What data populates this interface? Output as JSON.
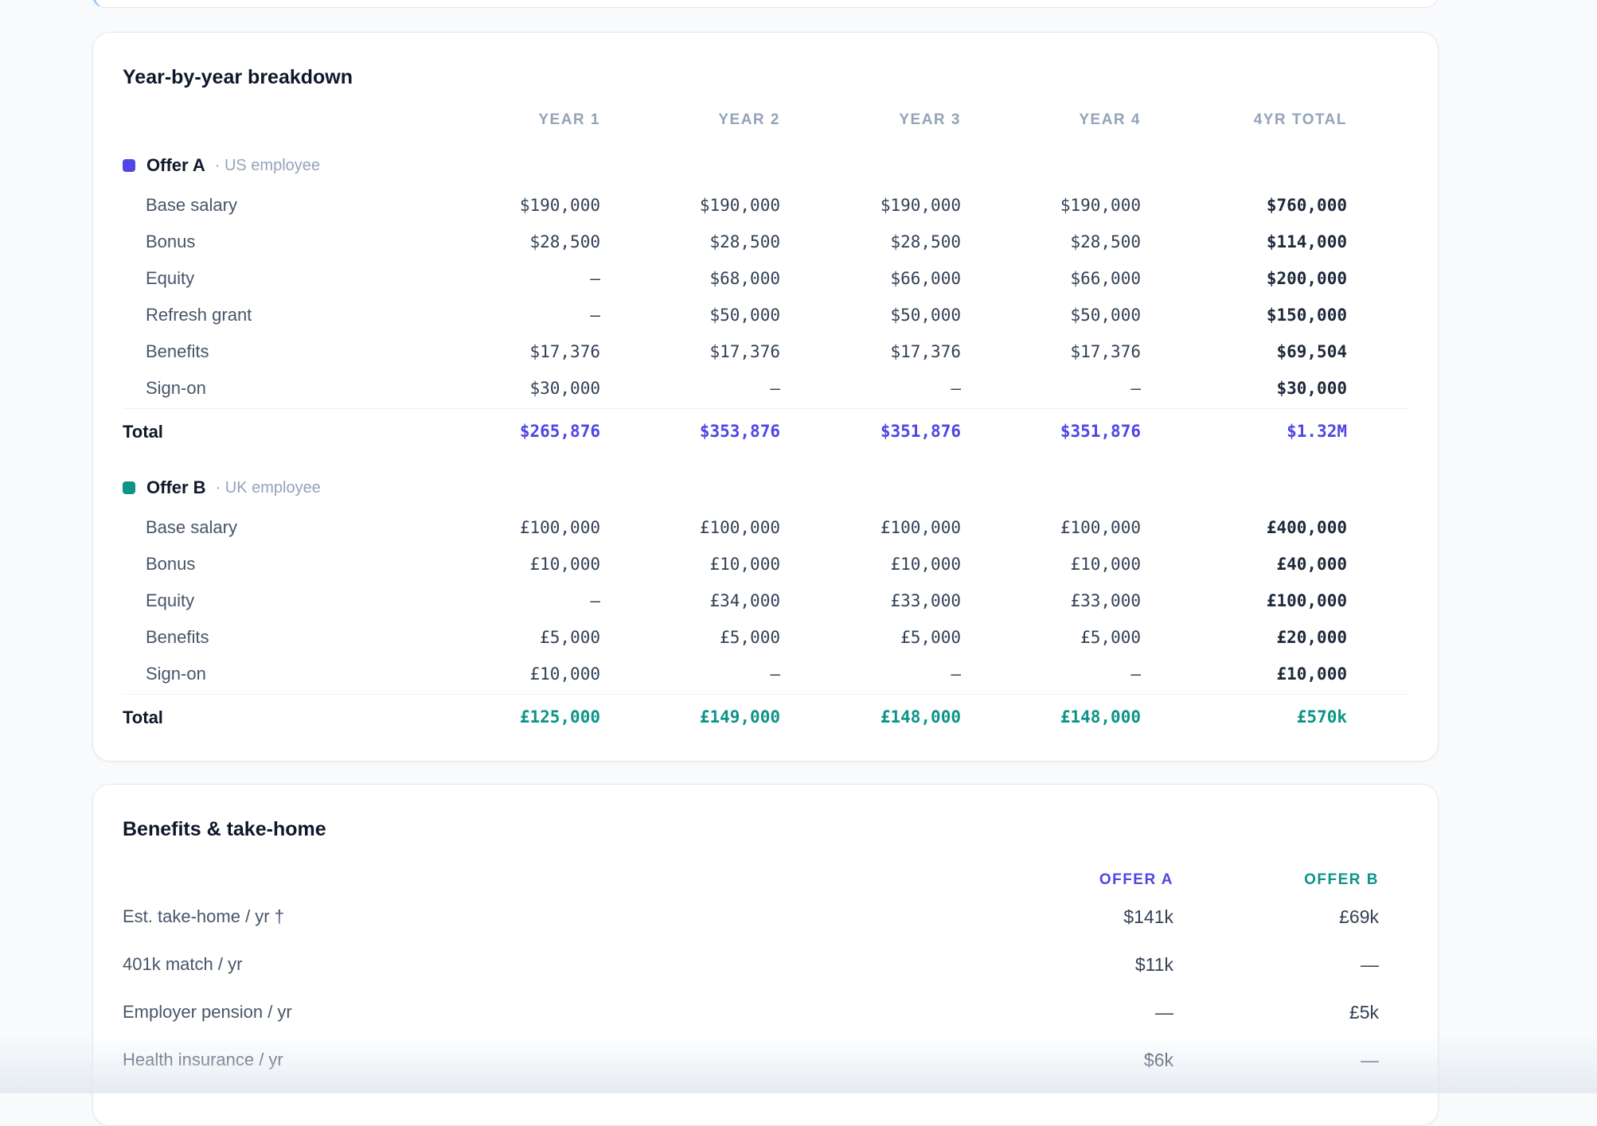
{
  "breakdown": {
    "title": "Year-by-year breakdown",
    "columns": [
      "YEAR 1",
      "YEAR 2",
      "YEAR 3",
      "YEAR 4",
      "4YR TOTAL"
    ],
    "offer_a": {
      "name": "Offer A",
      "subtitle": "· US employee",
      "color": "#4f46e5",
      "rows": [
        {
          "label": "Base salary",
          "values": [
            "$190,000",
            "$190,000",
            "$190,000",
            "$190,000",
            "$760,000"
          ]
        },
        {
          "label": "Bonus",
          "values": [
            "$28,500",
            "$28,500",
            "$28,500",
            "$28,500",
            "$114,000"
          ]
        },
        {
          "label": "Equity",
          "values": [
            "—",
            "$68,000",
            "$66,000",
            "$66,000",
            "$200,000"
          ]
        },
        {
          "label": "Refresh grant",
          "values": [
            "—",
            "$50,000",
            "$50,000",
            "$50,000",
            "$150,000"
          ]
        },
        {
          "label": "Benefits",
          "values": [
            "$17,376",
            "$17,376",
            "$17,376",
            "$17,376",
            "$69,504"
          ]
        },
        {
          "label": "Sign-on",
          "values": [
            "$30,000",
            "—",
            "—",
            "—",
            "$30,000"
          ]
        }
      ],
      "total": {
        "label": "Total",
        "values": [
          "$265,876",
          "$353,876",
          "$351,876",
          "$351,876",
          "$1.32M"
        ]
      }
    },
    "offer_b": {
      "name": "Offer B",
      "subtitle": "· UK employee",
      "color": "#0d9488",
      "rows": [
        {
          "label": "Base salary",
          "values": [
            "£100,000",
            "£100,000",
            "£100,000",
            "£100,000",
            "£400,000"
          ]
        },
        {
          "label": "Bonus",
          "values": [
            "£10,000",
            "£10,000",
            "£10,000",
            "£10,000",
            "£40,000"
          ]
        },
        {
          "label": "Equity",
          "values": [
            "—",
            "£34,000",
            "£33,000",
            "£33,000",
            "£100,000"
          ]
        },
        {
          "label": "Benefits",
          "values": [
            "£5,000",
            "£5,000",
            "£5,000",
            "£5,000",
            "£20,000"
          ]
        },
        {
          "label": "Sign-on",
          "values": [
            "£10,000",
            "—",
            "—",
            "—",
            "£10,000"
          ]
        }
      ],
      "total": {
        "label": "Total",
        "values": [
          "£125,000",
          "£149,000",
          "£148,000",
          "£148,000",
          "£570k"
        ]
      }
    }
  },
  "benefits": {
    "title": "Benefits & take-home",
    "columns": [
      "OFFER A",
      "OFFER B"
    ],
    "rows": [
      {
        "label": "Est. take-home / yr †",
        "a": "$141k",
        "b": "£69k"
      },
      {
        "label": "401k match / yr",
        "a": "$11k",
        "b": "—"
      },
      {
        "label": "Employer pension / yr",
        "a": "—",
        "b": "£5k"
      },
      {
        "label": "Health insurance / yr",
        "a": "$6k",
        "b": "—"
      }
    ]
  }
}
